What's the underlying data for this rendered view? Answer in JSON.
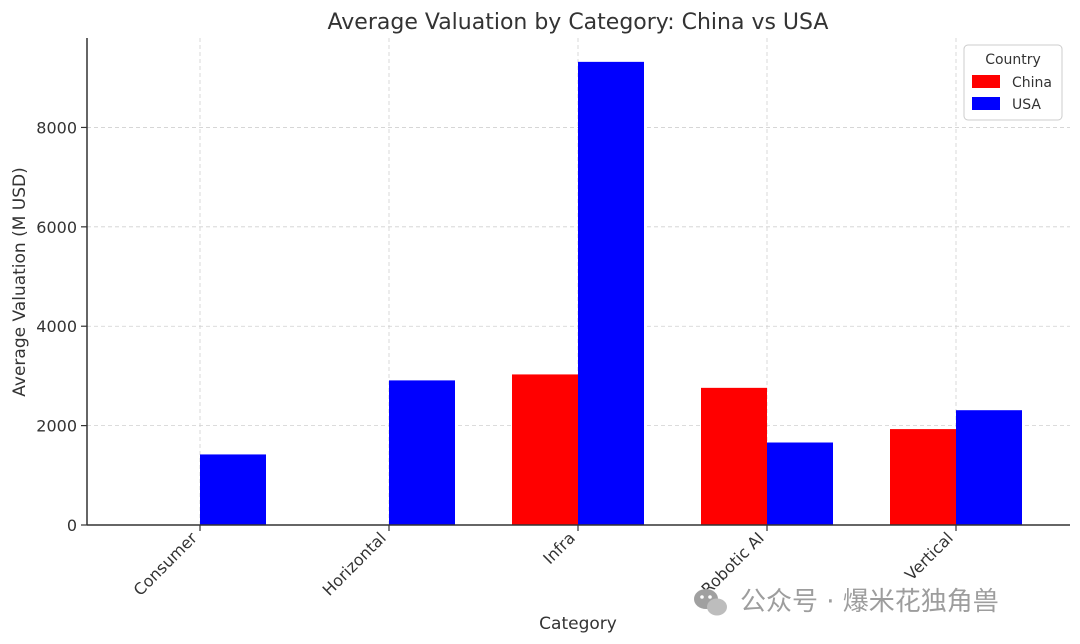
{
  "chart_data": {
    "type": "bar",
    "title": "Average Valuation by Category: China vs USA",
    "xlabel": "Category",
    "ylabel": "Average Valuation (M USD)",
    "categories": [
      "Consumer",
      "Horizontal",
      "Infra",
      "Robotic AI",
      "Vertical"
    ],
    "series": [
      {
        "name": "China",
        "color": "#ff0000",
        "values": [
          0,
          0,
          3030,
          2760,
          1930
        ]
      },
      {
        "name": "USA",
        "color": "#0000ff",
        "values": [
          1420,
          2910,
          9320,
          1660,
          2310
        ]
      }
    ],
    "ylim": [
      0,
      9800
    ],
    "yticks": [
      0,
      2000,
      4000,
      6000,
      8000
    ],
    "grid": true,
    "legend": {
      "title": "Country",
      "placement": "top-right"
    }
  },
  "watermark": {
    "icon": "wechat-icon",
    "text": "公众号 · 爆米花独角兽"
  }
}
